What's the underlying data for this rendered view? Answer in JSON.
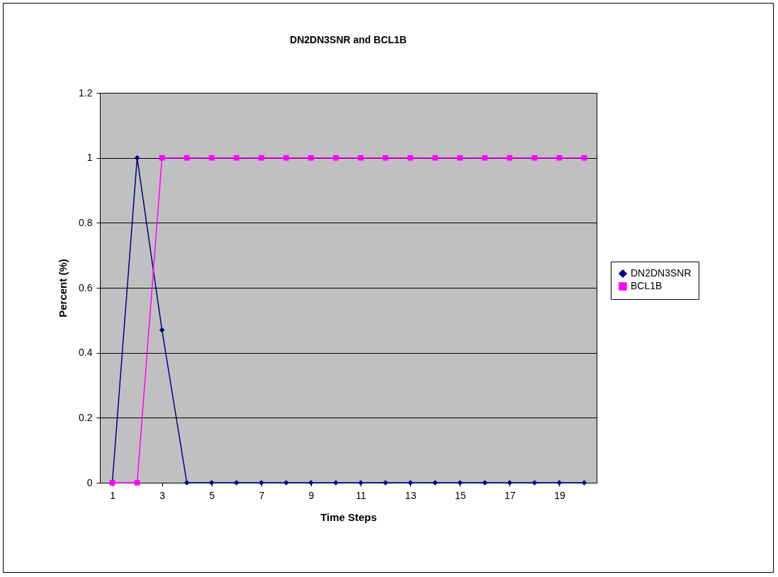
{
  "chart_data": {
    "type": "line",
    "title": "DN2DN3SNR and BCL1B",
    "xlabel": "Time Steps",
    "ylabel": "Percent (%)",
    "x": [
      1,
      2,
      3,
      4,
      5,
      6,
      7,
      8,
      9,
      10,
      11,
      12,
      13,
      14,
      15,
      16,
      17,
      18,
      19,
      20
    ],
    "xlim": [
      0.5,
      20.5
    ],
    "xticks": [
      1,
      3,
      5,
      7,
      9,
      11,
      13,
      15,
      17,
      19
    ],
    "series": [
      {
        "name": "DN2DN3SNR",
        "color": "#000080",
        "marker": "diamond",
        "values": [
          0,
          1,
          0.47,
          0,
          0,
          0,
          0,
          0,
          0,
          0,
          0,
          0,
          0,
          0,
          0,
          0,
          0,
          0,
          0,
          0
        ]
      },
      {
        "name": "BCL1B",
        "color": "#ff00ff",
        "marker": "square",
        "values": [
          0,
          0,
          1,
          1,
          1,
          1,
          1,
          1,
          1,
          1,
          1,
          1,
          1,
          1,
          1,
          1,
          1,
          1,
          1,
          1
        ]
      }
    ],
    "ylim": [
      0,
      1.2
    ],
    "yticks": [
      0,
      0.2,
      0.4,
      0.6,
      0.8,
      1,
      1.2
    ],
    "grid": "y",
    "legend": "right"
  }
}
